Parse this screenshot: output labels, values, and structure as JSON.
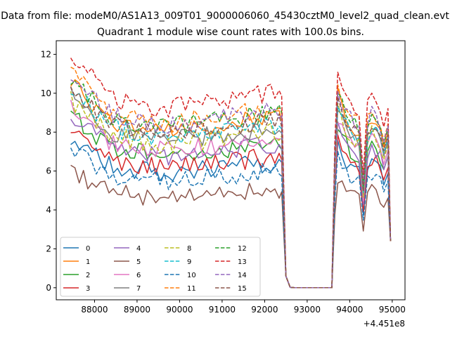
{
  "figure": {
    "suptitle": "Data from file: modeM0/AS1A13_009T01_9000006060_45430cztM0_level2_quad_clean.evt",
    "title": "Quadrant 1 module wise count rates with 100.0s bins.",
    "x_offset_label": "+4.451e8"
  },
  "colors": {
    "palette": [
      "#1f77b4",
      "#ff7f0e",
      "#2ca02c",
      "#d62728",
      "#9467bd",
      "#8c564b",
      "#e377c2",
      "#7f7f7f",
      "#bcbd22",
      "#17becf"
    ]
  },
  "chart_data": {
    "type": "line",
    "title": "Quadrant 1 module wise count rates with 100.0s bins.",
    "xlabel": "",
    "ylabel": "",
    "x_offset": 445100000,
    "xlim": [
      87100,
      95300
    ],
    "ylim": [
      -0.62,
      12.7
    ],
    "xticks": [
      88000,
      89000,
      90000,
      91000,
      92000,
      93000,
      94000,
      95000
    ],
    "yticks": [
      0,
      2,
      4,
      6,
      8,
      10,
      12
    ],
    "grid": false,
    "legend": {
      "position": "lower-left",
      "columns": 4,
      "entries": [
        "0",
        "1",
        "2",
        "3",
        "4",
        "5",
        "6",
        "7",
        "8",
        "9",
        "10",
        "11",
        "12",
        "13",
        "14",
        "15"
      ]
    },
    "series": [
      {
        "name": "0",
        "mean": 6.0,
        "color": "#1f77b4",
        "dashed": false
      },
      {
        "name": "1",
        "mean": 8.2,
        "color": "#ff7f0e",
        "dashed": false
      },
      {
        "name": "2",
        "mean": 6.9,
        "color": "#2ca02c",
        "dashed": false
      },
      {
        "name": "3",
        "mean": 6.3,
        "color": "#d62728",
        "dashed": false
      },
      {
        "name": "4",
        "mean": 6.9,
        "color": "#9467bd",
        "dashed": false
      },
      {
        "name": "5",
        "mean": 4.7,
        "color": "#8c564b",
        "dashed": false
      },
      {
        "name": "6",
        "mean": 7.2,
        "color": "#e377c2",
        "dashed": false
      },
      {
        "name": "7",
        "mean": 7.7,
        "color": "#7f7f7f",
        "dashed": false
      },
      {
        "name": "8",
        "mean": 7.5,
        "color": "#bcbd22",
        "dashed": true
      },
      {
        "name": "9",
        "mean": 7.9,
        "color": "#17becf",
        "dashed": true
      },
      {
        "name": "10",
        "mean": 5.6,
        "color": "#1f77b4",
        "dashed": true
      },
      {
        "name": "11",
        "mean": 8.6,
        "color": "#ff7f0e",
        "dashed": true
      },
      {
        "name": "12",
        "mean": 8.4,
        "color": "#2ca02c",
        "dashed": true
      },
      {
        "name": "13",
        "mean": 9.4,
        "color": "#d62728",
        "dashed": true
      },
      {
        "name": "14",
        "mean": 8.5,
        "color": "#9467bd",
        "dashed": true
      },
      {
        "name": "15",
        "mean": 8.0,
        "color": "#8c564b",
        "dashed": true
      }
    ]
  }
}
